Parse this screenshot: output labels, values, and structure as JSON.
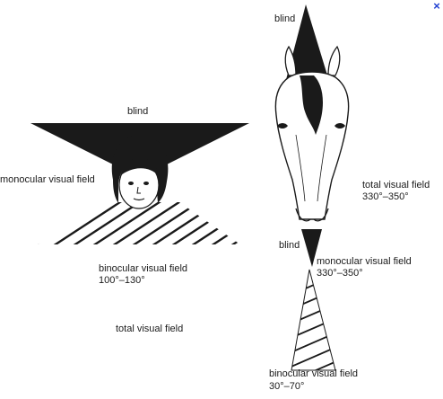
{
  "window": {
    "close_glyph": "×",
    "close_icon": "close-icon"
  },
  "human": {
    "blind": "blind",
    "monocular": "monocular visual field",
    "binocular": "binocular visual field",
    "binocular_range": "100°–130°",
    "total": "total visual field"
  },
  "horse": {
    "blind_top": "blind",
    "total": "total visual field",
    "total_range": "330°–350°",
    "blind_mid": "blind",
    "monocular": "monocular visual field",
    "monocular_range": "330°–350°",
    "binocular": "binocular visual field",
    "binocular_range": "30°–70°"
  },
  "colors": {
    "ink": "#1a1a1a",
    "close": "#1f3fd1"
  }
}
